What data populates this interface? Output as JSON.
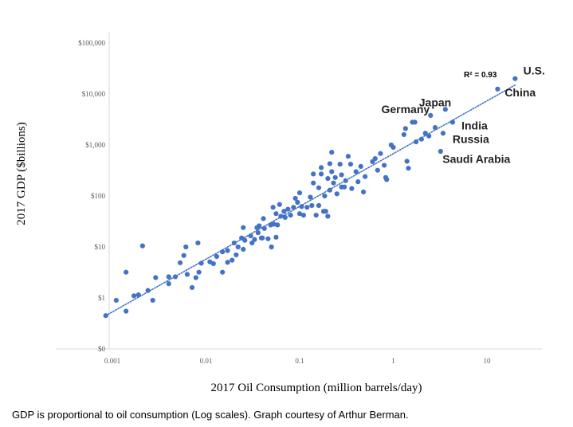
{
  "caption": "GDP is proportional to oil consumption (Log scales). Graph courtesy of Arthur Berman.",
  "chart_data": {
    "type": "scatter",
    "xlabel": "2017 Oil Consumption (million barrels/day)",
    "ylabel": "2017 GDP ($billions)",
    "x_scale": "log",
    "y_scale": "log",
    "xlim": [
      0.0008,
      40
    ],
    "ylim": [
      0.1,
      100000
    ],
    "x_ticks": [
      {
        "value": 0.001,
        "label": "0.001"
      },
      {
        "value": 0.01,
        "label": "0.01"
      },
      {
        "value": 0.1,
        "label": "0.1"
      },
      {
        "value": 1,
        "label": "1"
      },
      {
        "value": 10,
        "label": "10"
      }
    ],
    "y_ticks": [
      {
        "value": 0.1,
        "label": "$0"
      },
      {
        "value": 1,
        "label": "$1"
      },
      {
        "value": 10,
        "label": "$10"
      },
      {
        "value": 100,
        "label": "$100"
      },
      {
        "value": 1000,
        "label": "$1,000"
      },
      {
        "value": 10000,
        "label": "$10,000"
      },
      {
        "value": 100000,
        "label": "$100,000"
      }
    ],
    "marker_color": "#4472c4",
    "trendline": {
      "x": [
        0.00085,
        20
      ],
      "y": [
        0.45,
        15000
      ],
      "color": "#4472c4",
      "style": "dotted"
    },
    "r_squared_label": "R² = 0.93",
    "annotations": [
      {
        "text": "U.S.",
        "x": 20.5,
        "y": 20000
      },
      {
        "text": "China",
        "x": 13.5,
        "y": 12000
      },
      {
        "text": "Japan",
        "x": 4.0,
        "y": 4800
      },
      {
        "text": "Germany",
        "x": 2.4,
        "y": 3900
      },
      {
        "text": "India",
        "x": 4.4,
        "y": 2900
      },
      {
        "text": "Russia",
        "x": 3.6,
        "y": 1750
      },
      {
        "text": "Saudi Arabia",
        "x": 3.1,
        "y": 740
      }
    ],
    "points": [
      [
        0.00085,
        0.45
      ],
      [
        0.0011,
        0.9
      ],
      [
        0.0014,
        0.55
      ],
      [
        0.0014,
        3.2
      ],
      [
        0.0017,
        1.1
      ],
      [
        0.0019,
        1.15
      ],
      [
        0.0021,
        10.5
      ],
      [
        0.0024,
        1.4
      ],
      [
        0.0027,
        0.9
      ],
      [
        0.0029,
        2.5
      ],
      [
        0.004,
        2.6
      ],
      [
        0.004,
        1.9
      ],
      [
        0.0047,
        2.6
      ],
      [
        0.0053,
        4.9
      ],
      [
        0.0058,
        6.8
      ],
      [
        0.0061,
        10
      ],
      [
        0.0063,
        2.9
      ],
      [
        0.0071,
        1.6
      ],
      [
        0.0078,
        2.5
      ],
      [
        0.0082,
        12
      ],
      [
        0.0084,
        3.2
      ],
      [
        0.0089,
        4.8
      ],
      [
        0.011,
        5.1
      ],
      [
        0.012,
        4.7
      ],
      [
        0.013,
        6.5
      ],
      [
        0.015,
        8
      ],
      [
        0.015,
        3.2
      ],
      [
        0.017,
        8.5
      ],
      [
        0.017,
        5
      ],
      [
        0.019,
        5.5
      ],
      [
        0.02,
        12
      ],
      [
        0.021,
        7
      ],
      [
        0.022,
        10
      ],
      [
        0.024,
        15
      ],
      [
        0.025,
        9
      ],
      [
        0.025,
        24
      ],
      [
        0.026,
        13.5
      ],
      [
        0.03,
        16.5
      ],
      [
        0.031,
        12
      ],
      [
        0.033,
        14
      ],
      [
        0.035,
        24
      ],
      [
        0.036,
        19
      ],
      [
        0.037,
        26
      ],
      [
        0.039,
        15
      ],
      [
        0.04,
        15
      ],
      [
        0.041,
        36
      ],
      [
        0.042,
        23
      ],
      [
        0.046,
        14.5
      ],
      [
        0.049,
        27
      ],
      [
        0.05,
        10
      ],
      [
        0.052,
        60
      ],
      [
        0.053,
        28
      ],
      [
        0.056,
        15.5
      ],
      [
        0.056,
        45
      ],
      [
        0.058,
        27
      ],
      [
        0.061,
        68
      ],
      [
        0.063,
        40
      ],
      [
        0.068,
        50
      ],
      [
        0.07,
        38
      ],
      [
        0.075,
        55
      ],
      [
        0.08,
        42
      ],
      [
        0.086,
        60
      ],
      [
        0.09,
        90
      ],
      [
        0.095,
        75
      ],
      [
        0.1,
        45
      ],
      [
        0.1,
        115
      ],
      [
        0.105,
        62
      ],
      [
        0.11,
        42
      ],
      [
        0.12,
        60
      ],
      [
        0.13,
        95
      ],
      [
        0.135,
        65
      ],
      [
        0.14,
        180
      ],
      [
        0.14,
        270
      ],
      [
        0.15,
        42
      ],
      [
        0.16,
        65
      ],
      [
        0.16,
        145
      ],
      [
        0.17,
        270
      ],
      [
        0.17,
        360
      ],
      [
        0.18,
        50
      ],
      [
        0.185,
        100
      ],
      [
        0.19,
        50
      ],
      [
        0.2,
        220
      ],
      [
        0.2,
        40
      ],
      [
        0.21,
        130
      ],
      [
        0.21,
        430
      ],
      [
        0.22,
        720
      ],
      [
        0.22,
        300
      ],
      [
        0.23,
        180
      ],
      [
        0.24,
        230
      ],
      [
        0.25,
        110
      ],
      [
        0.27,
        420
      ],
      [
        0.28,
        150
      ],
      [
        0.28,
        260
      ],
      [
        0.3,
        150
      ],
      [
        0.31,
        200
      ],
      [
        0.33,
        600
      ],
      [
        0.35,
        420
      ],
      [
        0.36,
        140
      ],
      [
        0.4,
        300
      ],
      [
        0.42,
        190
      ],
      [
        0.45,
        380
      ],
      [
        0.48,
        120
      ],
      [
        0.5,
        240
      ],
      [
        0.6,
        470
      ],
      [
        0.64,
        540
      ],
      [
        0.68,
        320
      ],
      [
        0.73,
        680
      ],
      [
        0.8,
        400
      ],
      [
        0.83,
        230
      ],
      [
        0.85,
        210
      ],
      [
        0.95,
        1000
      ],
      [
        1.0,
        900
      ],
      [
        1.3,
        1600
      ],
      [
        1.35,
        2100
      ],
      [
        1.4,
        480
      ],
      [
        1.45,
        350
      ],
      [
        1.6,
        2800
      ],
      [
        1.7,
        2800
      ],
      [
        1.75,
        1150
      ],
      [
        2.0,
        1300
      ],
      [
        2.2,
        1700
      ],
      [
        2.4,
        1500
      ],
      [
        2.5,
        3800
      ],
      [
        2.8,
        2200
      ],
      [
        3.2,
        750
      ],
      [
        3.4,
        1700
      ],
      [
        3.6,
        5000
      ],
      [
        4.3,
        2800
      ],
      [
        13.0,
        12500
      ],
      [
        20.0,
        20000
      ]
    ]
  }
}
